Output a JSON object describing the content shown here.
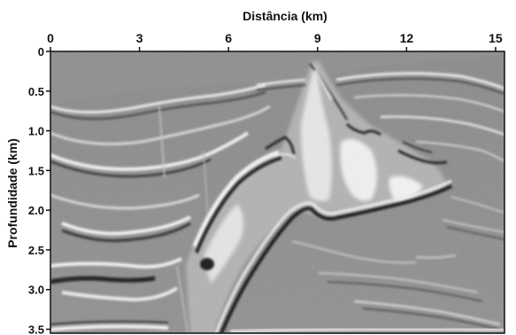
{
  "figure": {
    "x_axis_title": "Distância (km)",
    "y_axis_title": "Profundidade (km)",
    "x_ticks": [
      {
        "value": 0,
        "label": "0"
      },
      {
        "value": 3,
        "label": "3"
      },
      {
        "value": 6,
        "label": "6"
      },
      {
        "value": 9,
        "label": "9"
      },
      {
        "value": 12,
        "label": "12"
      },
      {
        "value": 15,
        "label": "15"
      }
    ],
    "y_ticks": [
      {
        "value": 0,
        "label": "0"
      },
      {
        "value": 0.5,
        "label": "0.5"
      },
      {
        "value": 1.0,
        "label": "1.0"
      },
      {
        "value": 1.5,
        "label": "1.5"
      },
      {
        "value": 2.0,
        "label": "2.0"
      },
      {
        "value": 2.5,
        "label": "2.5"
      },
      {
        "value": 3.0,
        "label": "3.0"
      },
      {
        "value": 3.5,
        "label": "3.5"
      }
    ],
    "x_range_km": [
      0,
      15.3
    ],
    "y_range_km": [
      0,
      3.55
    ],
    "image_style": "grayscale seismic depth section",
    "colors": {
      "background_gray": "#8c8c8c",
      "reflector_light": "#f4f4f4",
      "reflector_dark": "#151515",
      "frame": "#111111"
    }
  }
}
